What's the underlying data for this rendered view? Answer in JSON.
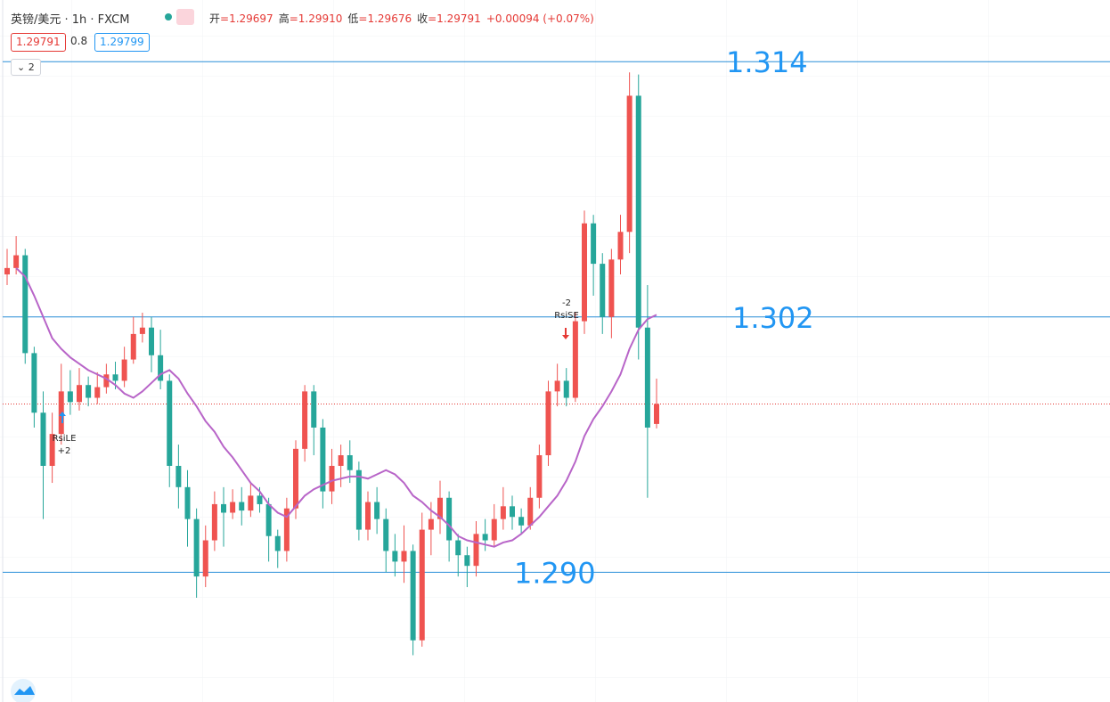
{
  "header": {
    "symbol": "英镑/美元 · 1h · FXCM",
    "ohlc": [
      {
        "k": "开",
        "v": "=1.29697"
      },
      {
        "k": "高",
        "v": "=1.29910"
      },
      {
        "k": "低",
        "v": "=1.29676"
      },
      {
        "k": "收",
        "v": "=1.29791"
      },
      {
        "k": "",
        "v": "+0.00094 (+0.07%)"
      }
    ],
    "prices": [
      "1.29791",
      "0.8",
      "1.29799"
    ],
    "collapse": "2"
  },
  "chart_data": {
    "type": "candlestick",
    "up_color": "#ef5350",
    "down_color": "#26a69a",
    "ma_color": "#b865c8",
    "ylim": [
      1.2839,
      1.3169
    ],
    "candles": [
      [
        1.304,
        1.3052,
        1.3035,
        1.3043
      ],
      [
        1.3043,
        1.3058,
        1.304,
        1.3049
      ],
      [
        1.3049,
        1.3052,
        1.2998,
        1.3003
      ],
      [
        1.3003,
        1.3006,
        1.2968,
        1.2975
      ],
      [
        1.2975,
        1.2985,
        1.2925,
        1.295
      ],
      [
        1.295,
        1.2975,
        1.2942,
        1.2965
      ],
      [
        1.2965,
        1.2998,
        1.296,
        1.2985
      ],
      [
        1.2985,
        1.2995,
        1.2974,
        1.298
      ],
      [
        1.298,
        1.2996,
        1.2976,
        1.2988
      ],
      [
        1.2988,
        1.2992,
        1.2978,
        1.2982
      ],
      [
        1.2982,
        1.2994,
        1.2979,
        1.2987
      ],
      [
        1.2987,
        1.2998,
        1.2984,
        1.2993
      ],
      [
        1.2993,
        1.2999,
        1.2986,
        1.299
      ],
      [
        1.299,
        1.3006,
        1.2987,
        1.3
      ],
      [
        1.3,
        1.302,
        1.2998,
        1.3012
      ],
      [
        1.3012,
        1.3022,
        1.3008,
        1.3015
      ],
      [
        1.3015,
        1.302,
        1.2994,
        1.3002
      ],
      [
        1.3002,
        1.3014,
        1.2986,
        1.299
      ],
      [
        1.299,
        1.2993,
        1.294,
        1.295
      ],
      [
        1.295,
        1.296,
        1.293,
        1.294
      ],
      [
        1.294,
        1.2948,
        1.2912,
        1.2925
      ],
      [
        1.2925,
        1.293,
        1.2888,
        1.2898
      ],
      [
        1.2898,
        1.2922,
        1.2893,
        1.2915
      ],
      [
        1.2915,
        1.2938,
        1.291,
        1.2932
      ],
      [
        1.2932,
        1.294,
        1.2912,
        1.2928
      ],
      [
        1.2928,
        1.2939,
        1.2925,
        1.2933
      ],
      [
        1.2933,
        1.294,
        1.2922,
        1.2929
      ],
      [
        1.2929,
        1.2942,
        1.2926,
        1.2936
      ],
      [
        1.2936,
        1.294,
        1.2928,
        1.2932
      ],
      [
        1.2932,
        1.2935,
        1.2905,
        1.2917
      ],
      [
        1.2917,
        1.292,
        1.2902,
        1.291
      ],
      [
        1.291,
        1.2935,
        1.2905,
        1.293
      ],
      [
        1.293,
        1.2962,
        1.2925,
        1.2958
      ],
      [
        1.2958,
        1.2988,
        1.2952,
        1.2985
      ],
      [
        1.2985,
        1.2988,
        1.2955,
        1.2968
      ],
      [
        1.2968,
        1.2972,
        1.293,
        1.2938
      ],
      [
        1.2938,
        1.2958,
        1.2932,
        1.295
      ],
      [
        1.295,
        1.296,
        1.294,
        1.2955
      ],
      [
        1.2955,
        1.2962,
        1.2942,
        1.2948
      ],
      [
        1.2948,
        1.2952,
        1.2915,
        1.292
      ],
      [
        1.292,
        1.2938,
        1.2915,
        1.2933
      ],
      [
        1.2933,
        1.294,
        1.2918,
        1.2925
      ],
      [
        1.2925,
        1.293,
        1.29,
        1.291
      ],
      [
        1.291,
        1.2918,
        1.2898,
        1.2905
      ],
      [
        1.2905,
        1.2922,
        1.2895,
        1.291
      ],
      [
        1.291,
        1.2913,
        1.2861,
        1.2868
      ],
      [
        1.2868,
        1.2928,
        1.2865,
        1.292
      ],
      [
        1.292,
        1.2933,
        1.2908,
        1.2925
      ],
      [
        1.2925,
        1.2943,
        1.2918,
        1.2935
      ],
      [
        1.2935,
        1.2938,
        1.2905,
        1.2915
      ],
      [
        1.2915,
        1.2918,
        1.2898,
        1.2908
      ],
      [
        1.2908,
        1.2912,
        1.2893,
        1.2903
      ],
      [
        1.2903,
        1.2924,
        1.2898,
        1.2918
      ],
      [
        1.2918,
        1.2925,
        1.291,
        1.2915
      ],
      [
        1.2915,
        1.2932,
        1.2912,
        1.2925
      ],
      [
        1.2925,
        1.294,
        1.292,
        1.2931
      ],
      [
        1.2931,
        1.2936,
        1.292,
        1.2926
      ],
      [
        1.2926,
        1.293,
        1.2918,
        1.2922
      ],
      [
        1.2922,
        1.294,
        1.292,
        1.2935
      ],
      [
        1.2935,
        1.296,
        1.293,
        1.2955
      ],
      [
        1.2955,
        1.299,
        1.295,
        1.2985
      ],
      [
        1.2985,
        1.2998,
        1.2978,
        1.299
      ],
      [
        1.299,
        1.2996,
        1.2978,
        1.2982
      ],
      [
        1.2982,
        1.3022,
        1.298,
        1.3018
      ],
      [
        1.3018,
        1.307,
        1.3012,
        1.3064
      ],
      [
        1.3064,
        1.3068,
        1.303,
        1.3045
      ],
      [
        1.3045,
        1.305,
        1.3012,
        1.302
      ],
      [
        1.302,
        1.3052,
        1.301,
        1.3047
      ],
      [
        1.3047,
        1.3068,
        1.304,
        1.306
      ],
      [
        1.306,
        1.3135,
        1.305,
        1.3124
      ],
      [
        1.3124,
        1.3134,
        1.3,
        1.3015
      ],
      [
        1.3015,
        1.3035,
        1.2935,
        1.2968
      ],
      [
        1.29697,
        1.2991,
        1.29676,
        1.29791
      ]
    ],
    "ma": [
      null,
      1.3043,
      1.3039,
      1.303,
      1.302,
      1.301,
      1.3005,
      1.3001,
      1.2998,
      1.2995,
      1.2993,
      1.2991,
      1.2988,
      1.2984,
      1.2982,
      1.2985,
      1.2989,
      1.2993,
      1.2995,
      1.2991,
      1.2984,
      1.2978,
      1.2971,
      1.2966,
      1.2959,
      1.2954,
      1.2948,
      1.2942,
      1.2938,
      1.2932,
      1.2928,
      1.2926,
      1.2931,
      1.2936,
      1.2939,
      1.2941,
      1.2943,
      1.2944,
      1.2945,
      1.2945,
      1.2944,
      1.2946,
      1.2948,
      1.2946,
      1.2942,
      1.2936,
      1.2933,
      1.2929,
      1.2926,
      1.2922,
      1.2917,
      1.2915,
      1.2914,
      1.2913,
      1.2912,
      1.2914,
      1.2915,
      1.2918,
      1.2922,
      1.2926,
      1.2931,
      1.2936,
      1.2943,
      1.2952,
      1.2964,
      1.2972,
      1.2978,
      1.2985,
      1.2993,
      1.3005,
      1.3014,
      1.3019,
      1.3021
    ],
    "last_price": 1.29791,
    "levels": [
      {
        "value": 1.314,
        "label": "1.314"
      },
      {
        "value": 1.302,
        "label": "1.302"
      },
      {
        "value": 1.29,
        "label": "1.290"
      }
    ],
    "signals": [
      {
        "label": "RsiLE",
        "qty": "+2"
      },
      {
        "label": "RsiSE",
        "qty": "-2"
      }
    ]
  }
}
